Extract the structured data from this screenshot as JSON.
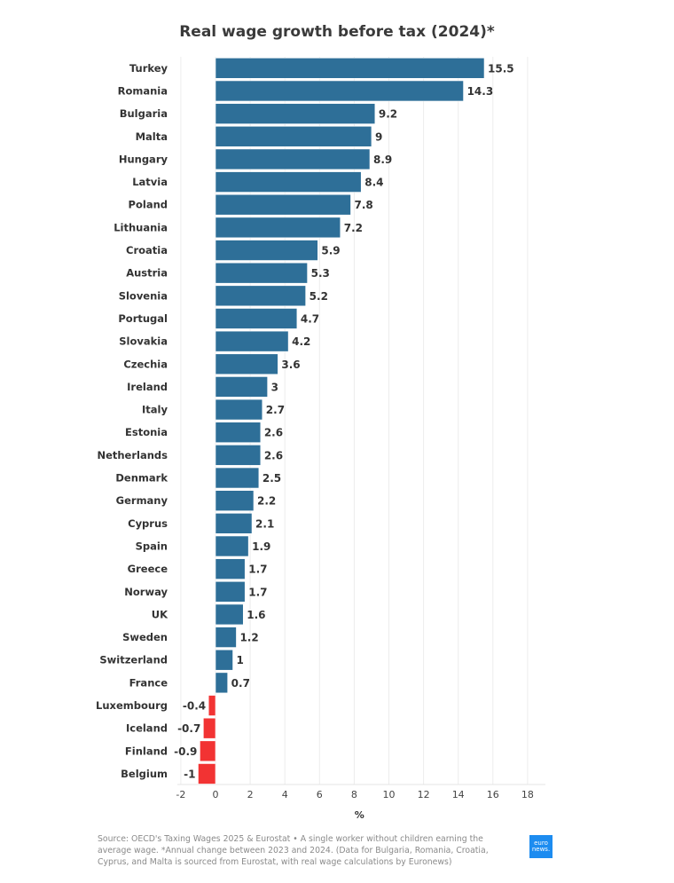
{
  "chart_data": {
    "type": "bar",
    "orientation": "horizontal",
    "title": "Real wage growth before tax (2024)*",
    "xlabel": "%",
    "ylabel": "",
    "xlim": [
      -2,
      19
    ],
    "xticks": [
      -2,
      0,
      2,
      4,
      6,
      8,
      10,
      12,
      14,
      16,
      18
    ],
    "grid": true,
    "categories": [
      "Turkey",
      "Romania",
      "Bulgaria",
      "Malta",
      "Hungary",
      "Latvia",
      "Poland",
      "Lithuania",
      "Croatia",
      "Austria",
      "Slovenia",
      "Portugal",
      "Slovakia",
      "Czechia",
      "Ireland",
      "Italy",
      "Estonia",
      "Netherlands",
      "Denmark",
      "Germany",
      "Cyprus",
      "Spain",
      "Greece",
      "Norway",
      "UK",
      "Sweden",
      "Switzerland",
      "France",
      "Luxembourg",
      "Iceland",
      "Finland",
      "Belgium"
    ],
    "values": [
      15.5,
      14.3,
      9.2,
      9,
      8.9,
      8.4,
      7.8,
      7.2,
      5.9,
      5.3,
      5.2,
      4.7,
      4.2,
      3.6,
      3,
      2.7,
      2.6,
      2.6,
      2.5,
      2.2,
      2.1,
      1.9,
      1.7,
      1.7,
      1.6,
      1.2,
      1,
      0.7,
      -0.4,
      -0.7,
      -0.9,
      -1
    ],
    "colors": {
      "positive": "#2e6f98",
      "negative": "#f23333"
    }
  },
  "footer": {
    "source": "Source: OECD's Taxing Wages 2025 & Eurostat • A single worker without children earning the average wage. *Annual change between 2023 and 2024. (Data for Bulgaria, Romania, Croatia, Cyprus, and Malta is sourced from Eurostat, with real wage calculations by Euronews)",
    "logo_line1": "euro",
    "logo_line2": "news."
  }
}
